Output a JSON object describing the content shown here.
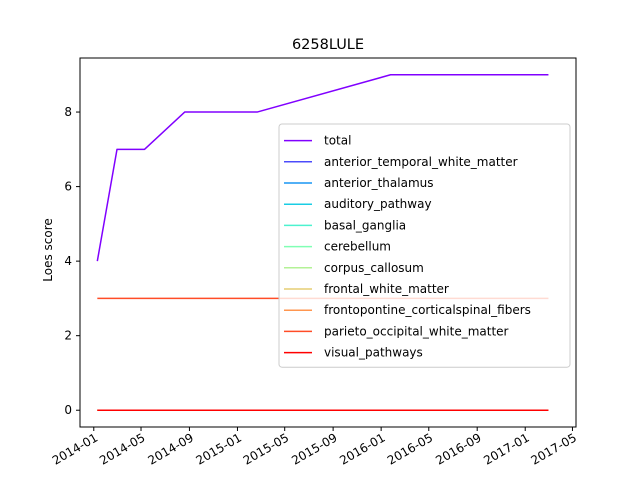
{
  "chart_data": {
    "type": "line",
    "title": "6258LULE",
    "xlabel": "",
    "ylabel": "Loes score",
    "x_ticks": [
      "2014-01",
      "2014-05",
      "2014-09",
      "2015-01",
      "2015-05",
      "2015-09",
      "2016-01",
      "2016-05",
      "2016-09",
      "2017-01",
      "2017-05"
    ],
    "y_ticks": [
      "0",
      "2",
      "4",
      "6",
      "8"
    ],
    "xlim": [
      "2013-11-27",
      "2017-05-10"
    ],
    "ylim": [
      -0.45,
      9.45
    ],
    "grid": false,
    "legend_position": "center-right",
    "series": [
      {
        "name": "total",
        "color": "#8000ff",
        "x": [
          "2014-01-10",
          "2014-03-01",
          "2014-05-10",
          "2014-08-20",
          "2015-02-20",
          "2016-01-25",
          "2017-03-01"
        ],
        "y": [
          4,
          7,
          7,
          8,
          8,
          9,
          9
        ]
      },
      {
        "name": "anterior_temporal_white_matter",
        "color": "#4c4cfb",
        "x": [
          "2014-01-10",
          "2017-03-01"
        ],
        "y": [
          0,
          0
        ]
      },
      {
        "name": "anterior_thalamus",
        "color": "#1996f3",
        "x": [
          "2014-01-10",
          "2017-03-01"
        ],
        "y": [
          0,
          0
        ]
      },
      {
        "name": "auditory_pathway",
        "color": "#1acde4",
        "x": [
          "2014-01-10",
          "2017-03-01"
        ],
        "y": [
          0,
          0
        ]
      },
      {
        "name": "basal_ganglia",
        "color": "#4df2cf",
        "x": [
          "2014-01-10",
          "2017-03-01"
        ],
        "y": [
          0,
          0
        ]
      },
      {
        "name": "cerebellum",
        "color": "#80ffb4",
        "x": [
          "2014-01-10",
          "2017-03-01"
        ],
        "y": [
          0,
          0
        ]
      },
      {
        "name": "corpus_callosum",
        "color": "#b3f296",
        "x": [
          "2014-01-10",
          "2017-03-01"
        ],
        "y": [
          0,
          0
        ]
      },
      {
        "name": "frontal_white_matter",
        "color": "#e6cd73",
        "x": [
          "2014-01-10",
          "2017-03-01"
        ],
        "y": [
          0,
          0
        ]
      },
      {
        "name": "frontopontine_corticalspinal_fibers",
        "color": "#ff964f",
        "x": [
          "2014-01-10",
          "2017-03-01"
        ],
        "y": [
          0,
          0
        ]
      },
      {
        "name": "parieto_occipital_white_matter",
        "color": "#ff4d27",
        "x": [
          "2014-01-10",
          "2017-03-01"
        ],
        "y": [
          3,
          3
        ]
      },
      {
        "name": "visual_pathways",
        "color": "#ff0000",
        "x": [
          "2014-01-10",
          "2017-03-01"
        ],
        "y": [
          0,
          0
        ]
      }
    ]
  }
}
